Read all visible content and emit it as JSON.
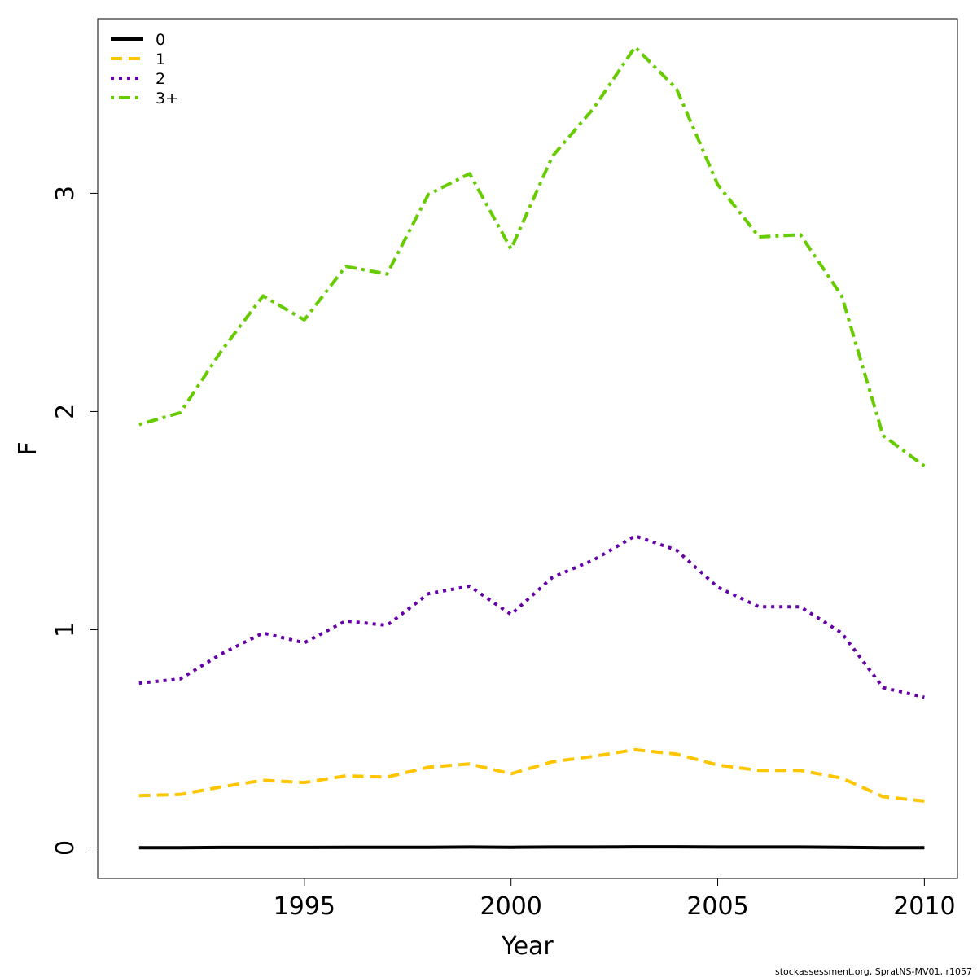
{
  "chart_data": {
    "type": "line",
    "xlabel": "Year",
    "ylabel": "F",
    "xlim": [
      1990.0,
      2010.8
    ],
    "ylim": [
      -0.14,
      3.8
    ],
    "xticks": [
      1995,
      2000,
      2005,
      2010
    ],
    "yticks": [
      0,
      1,
      2,
      3
    ],
    "grid": false,
    "legend_position": "top-left",
    "x": [
      1991,
      1992,
      1993,
      1994,
      1995,
      1996,
      1997,
      1998,
      1999,
      2000,
      2001,
      2002,
      2003,
      2004,
      2005,
      2006,
      2007,
      2008,
      2009,
      2010
    ],
    "series": [
      {
        "name": "0",
        "color": "#000000",
        "dash": "solid",
        "values": [
          0.001,
          0.001,
          0.002,
          0.002,
          0.002,
          0.003,
          0.003,
          0.003,
          0.004,
          0.003,
          0.004,
          0.004,
          0.005,
          0.005,
          0.004,
          0.004,
          0.004,
          0.003,
          0.001,
          0.001
        ]
      },
      {
        "name": "1",
        "color": "#FFC600",
        "dash": "dashed",
        "values": [
          0.24,
          0.245,
          0.28,
          0.31,
          0.3,
          0.33,
          0.325,
          0.37,
          0.385,
          0.34,
          0.395,
          0.42,
          0.45,
          0.43,
          0.38,
          0.355,
          0.355,
          0.32,
          0.235,
          0.215
        ]
      },
      {
        "name": "2",
        "color": "#6600AA",
        "dash": "dotted",
        "values": [
          0.755,
          0.775,
          0.89,
          0.985,
          0.94,
          1.04,
          1.02,
          1.165,
          1.2,
          1.07,
          1.24,
          1.32,
          1.43,
          1.365,
          1.195,
          1.105,
          1.105,
          0.985,
          0.735,
          0.69
        ]
      },
      {
        "name": "3+",
        "color": "#66CC00",
        "dash": "dashdot",
        "values": [
          1.94,
          1.995,
          2.28,
          2.53,
          2.42,
          2.665,
          2.63,
          2.995,
          3.09,
          2.745,
          3.17,
          3.39,
          3.67,
          3.48,
          3.04,
          2.8,
          2.81,
          2.53,
          1.89,
          1.75
        ]
      }
    ]
  },
  "footer": {
    "credit": "stockassessment.org, SpratNS-MV01, r1057"
  }
}
